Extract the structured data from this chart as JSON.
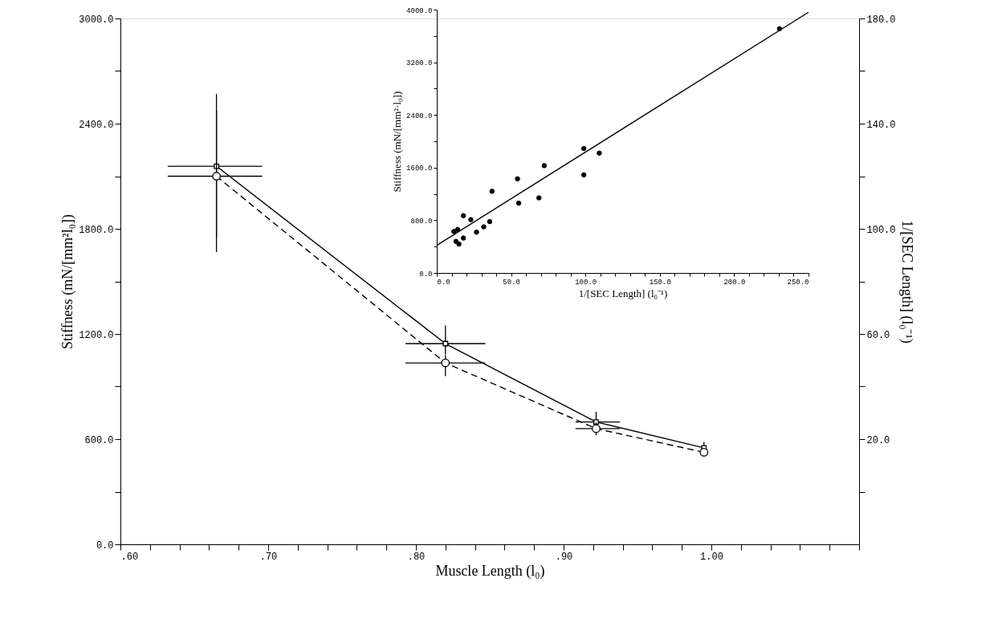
{
  "chart_data": [
    {
      "type": "line",
      "xlabel": "Muscle Length (l₀)",
      "ylabel": "Stiffness (mN/[mm²l₀])",
      "y2label": "1/[SEC Length] (l₀⁻¹)",
      "x": [
        0.665,
        0.82,
        0.922,
        0.995
      ],
      "xlim": [
        0.6,
        1.1
      ],
      "xticks": [
        {
          "value": 0.6,
          "label": ".60"
        },
        {
          "value": 0.62,
          "label": null
        },
        {
          "value": 0.64,
          "label": null
        },
        {
          "value": 0.66,
          "label": null
        },
        {
          "value": 0.68,
          "label": null
        },
        {
          "value": 0.7,
          "label": ".70"
        },
        {
          "value": 0.72,
          "label": null
        },
        {
          "value": 0.74,
          "label": null
        },
        {
          "value": 0.76,
          "label": null
        },
        {
          "value": 0.78,
          "label": null
        },
        {
          "value": 0.8,
          "label": ".80"
        },
        {
          "value": 0.82,
          "label": null
        },
        {
          "value": 0.84,
          "label": null
        },
        {
          "value": 0.86,
          "label": null
        },
        {
          "value": 0.88,
          "label": null
        },
        {
          "value": 0.9,
          "label": ".90"
        },
        {
          "value": 0.92,
          "label": null
        },
        {
          "value": 0.94,
          "label": null
        },
        {
          "value": 0.96,
          "label": null
        },
        {
          "value": 0.98,
          "label": null
        },
        {
          "value": 1.0,
          "label": "1.00"
        },
        {
          "value": 1.02,
          "label": null
        },
        {
          "value": 1.04,
          "label": null
        },
        {
          "value": 1.06,
          "label": null
        },
        {
          "value": 1.08,
          "label": null
        },
        {
          "value": 1.1,
          "label": null
        }
      ],
      "ylim": [
        0,
        3000
      ],
      "yticks": [
        {
          "value": 0,
          "label": "0.0"
        },
        {
          "value": 300,
          "label": null
        },
        {
          "value": 600,
          "label": "600.0"
        },
        {
          "value": 900,
          "label": null
        },
        {
          "value": 1200,
          "label": "1200.0"
        },
        {
          "value": 1500,
          "label": null
        },
        {
          "value": 1800,
          "label": "1800.0"
        },
        {
          "value": 2100,
          "label": null
        },
        {
          "value": 2400,
          "label": "2400.0"
        },
        {
          "value": 2700,
          "label": null
        },
        {
          "value": 3000,
          "label": "3000.0"
        }
      ],
      "y2lim": [
        -20,
        180
      ],
      "y2ticks": [
        {
          "value": 0,
          "label": null
        },
        {
          "value": 20,
          "label": "20.0"
        },
        {
          "value": 40,
          "label": null
        },
        {
          "value": 60,
          "label": "60.0"
        },
        {
          "value": 80,
          "label": null
        },
        {
          "value": 100,
          "label": "100.0"
        },
        {
          "value": 120,
          "label": null
        },
        {
          "value": 140,
          "label": "140.0"
        },
        {
          "value": 160,
          "label": null
        },
        {
          "value": 180,
          "label": "180.0"
        }
      ],
      "series": [
        {
          "color": "#000000",
          "line_style": "solid",
          "marker": "square",
          "values": [
            2157,
            1145,
            698,
            550
          ],
          "errors": [
            [
              1667,
              2569
            ],
            [
              1083,
              1248
            ],
            [
              641,
              756
            ],
            [
              504,
              584
            ]
          ],
          "xerrors": [
            [
              0.632,
              0.696
            ],
            [
              0.793,
              0.847
            ],
            [
              0.908,
              0.938
            ],
            null
          ]
        },
        {
          "color": "#000000",
          "line_style": "dashed",
          "marker": "circle",
          "axis": "y2",
          "values": [
            120,
            49,
            24,
            15
          ],
          "errors": [
            [
              97,
              145
            ],
            [
              44,
              52
            ],
            [
              21.5,
              26.3
            ],
            null
          ],
          "xerrors": [
            [
              0.632,
              0.696
            ],
            [
              0.793,
              0.847
            ],
            [
              0.908,
              0.938
            ],
            null
          ]
        }
      ]
    },
    {
      "type": "scatter",
      "xlabel": "1/[SEC Length] (l₀⁻¹)",
      "ylabel": "Stiffness (mN/[mm²·l₀])",
      "xlim": [
        0,
        250
      ],
      "xticks": [
        {
          "value": 0,
          "label": "0.0"
        },
        {
          "value": 10,
          "label": null
        },
        {
          "value": 20,
          "label": null
        },
        {
          "value": 30,
          "label": null
        },
        {
          "value": 40,
          "label": null
        },
        {
          "value": 50,
          "label": "50.0"
        },
        {
          "value": 60,
          "label": null
        },
        {
          "value": 70,
          "label": null
        },
        {
          "value": 80,
          "label": null
        },
        {
          "value": 90,
          "label": null
        },
        {
          "value": 100,
          "label": "100.0"
        },
        {
          "value": 110,
          "label": null
        },
        {
          "value": 120,
          "label": null
        },
        {
          "value": 130,
          "label": null
        },
        {
          "value": 140,
          "label": null
        },
        {
          "value": 150,
          "label": "150.0"
        },
        {
          "value": 160,
          "label": null
        },
        {
          "value": 170,
          "label": null
        },
        {
          "value": 180,
          "label": null
        },
        {
          "value": 190,
          "label": null
        },
        {
          "value": 200,
          "label": "200.0"
        },
        {
          "value": 210,
          "label": null
        },
        {
          "value": 220,
          "label": null
        },
        {
          "value": 230,
          "label": null
        },
        {
          "value": 240,
          "label": null
        },
        {
          "value": 250,
          "label": "250.0"
        }
      ],
      "ylim": [
        0,
        4000
      ],
      "yticks": [
        {
          "value": 0,
          "label": "0.0"
        },
        {
          "value": 400,
          "label": null
        },
        {
          "value": 800,
          "label": "800.0"
        },
        {
          "value": 1200,
          "label": null
        },
        {
          "value": 1600,
          "label": "1600.0"
        },
        {
          "value": 2000,
          "label": null
        },
        {
          "value": 2400,
          "label": "2400.0"
        },
        {
          "value": 2800,
          "label": null
        },
        {
          "value": 3200,
          "label": "3200.0"
        },
        {
          "value": 3600,
          "label": null
        },
        {
          "value": 4000,
          "label": "4000.0"
        }
      ],
      "series": [
        {
          "type": "scatter",
          "color": "#000000",
          "marker": "circle",
          "x": [
            11.5,
            14.1,
            12.9,
            14.9,
            17.9,
            17.9,
            22.9,
            26.7,
            31.6,
            35.6,
            37.2,
            54.3,
            55.1,
            68.7,
            72.3,
            98.9,
            98.9,
            109.3,
            230.5
          ],
          "values": [
            630,
            660,
            480,
            440,
            870,
            530,
            810,
            620,
            700,
            780,
            1240,
            1430,
            1060,
            1140,
            1630,
            1890,
            1490,
            1820,
            3710
          ]
        },
        {
          "type": "line",
          "color": "#000000",
          "line_style": "solid",
          "marker": "none",
          "x": [
            0,
            250
          ],
          "values": [
            420,
            3960
          ]
        }
      ]
    }
  ]
}
